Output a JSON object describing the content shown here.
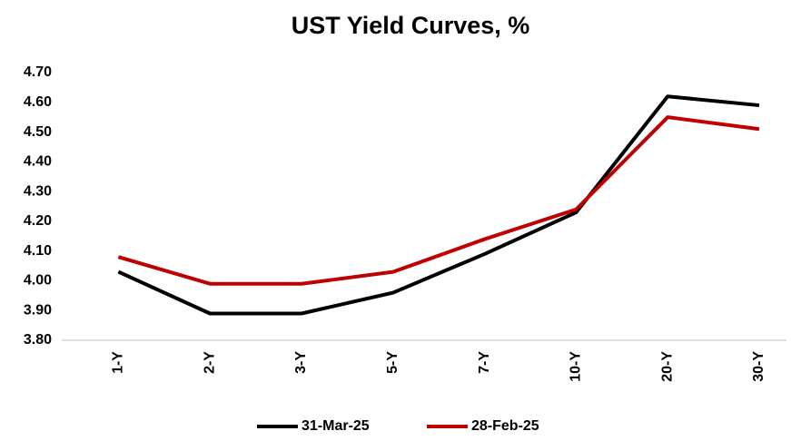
{
  "chart_data": {
    "type": "line",
    "title": "UST Yield Curves, %",
    "categories": [
      "1-Y",
      "2-Y",
      "3-Y",
      "5-Y",
      "7-Y",
      "10-Y",
      "20-Y",
      "30-Y"
    ],
    "series": [
      {
        "name": "31-Mar-25",
        "color": "#000000",
        "values": [
          4.03,
          3.89,
          3.89,
          3.96,
          4.09,
          4.23,
          4.62,
          4.59
        ]
      },
      {
        "name": "28-Feb-25",
        "color": "#c00000",
        "values": [
          4.08,
          3.99,
          3.99,
          4.03,
          4.14,
          4.24,
          4.55,
          4.51
        ]
      }
    ],
    "ylim": [
      3.8,
      4.7
    ],
    "yticks": [
      {
        "value": 3.8,
        "label": "3.80"
      },
      {
        "value": 3.9,
        "label": "3.90"
      },
      {
        "value": 4.0,
        "label": "4.00"
      },
      {
        "value": 4.1,
        "label": "4.10"
      },
      {
        "value": 4.2,
        "label": "4.20"
      },
      {
        "value": 4.3,
        "label": "4.30"
      },
      {
        "value": 4.4,
        "label": "4.40"
      },
      {
        "value": 4.5,
        "label": "4.50"
      },
      {
        "value": 4.6,
        "label": "4.60"
      },
      {
        "value": 4.7,
        "label": "4.70"
      }
    ],
    "legend": "bottom"
  }
}
